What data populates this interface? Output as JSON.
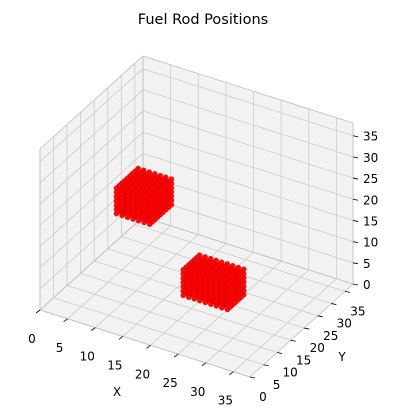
{
  "chart_data": {
    "type": "scatter",
    "projection": "3d",
    "title": "Fuel Rod Positions",
    "xlabel": "X",
    "ylabel": "Y",
    "zlabel": "",
    "xlim": [
      0,
      38
    ],
    "ylim": [
      0,
      38
    ],
    "zlim": [
      0,
      38
    ],
    "xticks": [
      0,
      5,
      10,
      15,
      20,
      25,
      30,
      35
    ],
    "yticks": [
      0,
      5,
      10,
      15,
      20,
      25,
      30,
      35
    ],
    "zticks": [
      0,
      5,
      10,
      15,
      20,
      25,
      30,
      35
    ],
    "grid": true,
    "pane_color": "#f2f2f2",
    "grid_color": "#cccccc",
    "marker_color": "#ff0000",
    "clusters": [
      {
        "x_range": [
          6,
          12
        ],
        "y_range": [
          16,
          24
        ],
        "z_range": [
          16,
          22
        ],
        "step": 1
      },
      {
        "x_range": [
          22,
          30
        ],
        "y_range": [
          8,
          14
        ],
        "z_range": [
          8,
          14
        ],
        "step": 1
      }
    ]
  }
}
